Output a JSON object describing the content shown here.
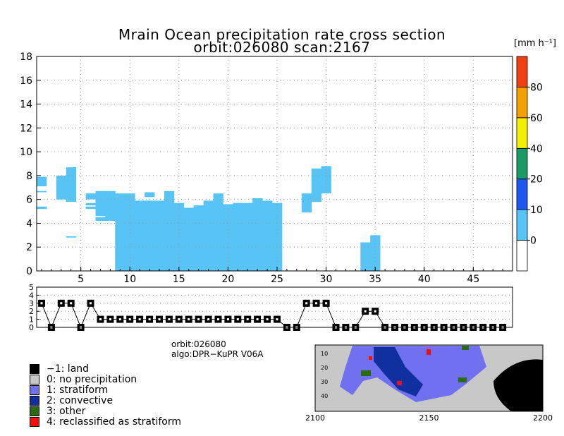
{
  "title": {
    "line1": "Mrain Ocean precipitation rate cross section",
    "line2": "orbit:026080    scan:2167"
  },
  "colorbar": {
    "unit": "[mm h⁻¹]",
    "ticks": [
      "0",
      "10",
      "20",
      "40",
      "60",
      "80"
    ],
    "colors": [
      "#ffffff",
      "#58c4f5",
      "#1e56f0",
      "#1a9a64",
      "#f5f000",
      "#f5a000",
      "#f04010"
    ]
  },
  "meta": {
    "orbit": "orbit:026080",
    "algo": "algo:DPR−KuPR V06A"
  },
  "legend": [
    {
      "code": "−1: land",
      "color": "#000000"
    },
    {
      "code": "0: no precipitation",
      "color": "#c8c8c8"
    },
    {
      "code": "1: stratiform",
      "color": "#7070f0"
    },
    {
      "code": "2: convective",
      "color": "#1030a0"
    },
    {
      "code": "3: other",
      "color": "#2a6a10"
    },
    {
      "code": "4: reclassified as stratiform",
      "color": "#f01010"
    }
  ],
  "chart_data": [
    {
      "type": "heatmap",
      "title": "Mrain Ocean precipitation rate cross section",
      "xlim": [
        0.5,
        49
      ],
      "ylim": [
        0,
        18
      ],
      "xticks": [
        5,
        10,
        15,
        20,
        25,
        30,
        35,
        40,
        45
      ],
      "yticks": [
        0,
        2,
        4,
        6,
        8,
        10,
        12,
        14,
        16,
        18
      ],
      "grid": true,
      "fill_color": "#58c4f5",
      "columns": [
        {
          "x": 1,
          "segments": [
            [
              7.1,
              7.9
            ],
            [
              6.6,
              6.7
            ],
            [
              5.2,
              5.4
            ]
          ]
        },
        {
          "x": 3,
          "segments": [
            [
              6.0,
              8.0
            ]
          ]
        },
        {
          "x": 4,
          "segments": [
            [
              5.8,
              8.7
            ],
            [
              2.8,
              2.9
            ]
          ]
        },
        {
          "x": 6,
          "segments": [
            [
              6.0,
              6.5
            ],
            [
              5.5,
              5.7
            ],
            [
              5.2,
              5.4
            ]
          ]
        },
        {
          "x": 7,
          "segments": [
            [
              4.6,
              6.7
            ],
            [
              4.2,
              4.5
            ]
          ]
        },
        {
          "x": 8,
          "segments": [
            [
              4.2,
              6.7
            ]
          ]
        },
        {
          "x": 9,
          "segments": [
            [
              0,
              6.5
            ]
          ]
        },
        {
          "x": 10,
          "segments": [
            [
              0,
              6.5
            ]
          ]
        },
        {
          "x": 11,
          "segments": [
            [
              0,
              5.9
            ]
          ]
        },
        {
          "x": 12,
          "segments": [
            [
              0,
              5.9
            ],
            [
              6.2,
              6.6
            ]
          ]
        },
        {
          "x": 13,
          "segments": [
            [
              0,
              5.9
            ]
          ]
        },
        {
          "x": 14,
          "segments": [
            [
              0,
              6.7
            ]
          ]
        },
        {
          "x": 15,
          "segments": [
            [
              0,
              5.7
            ]
          ]
        },
        {
          "x": 16,
          "segments": [
            [
              0,
              5.3
            ]
          ]
        },
        {
          "x": 17,
          "segments": [
            [
              0,
              5.5
            ]
          ]
        },
        {
          "x": 18,
          "segments": [
            [
              0,
              5.9
            ]
          ]
        },
        {
          "x": 19,
          "segments": [
            [
              0,
              6.5
            ]
          ]
        },
        {
          "x": 20,
          "segments": [
            [
              0,
              5.6
            ]
          ]
        },
        {
          "x": 21,
          "segments": [
            [
              0,
              5.7
            ]
          ]
        },
        {
          "x": 22,
          "segments": [
            [
              0,
              5.7
            ]
          ]
        },
        {
          "x": 23,
          "segments": [
            [
              0,
              6.1
            ]
          ]
        },
        {
          "x": 24,
          "segments": [
            [
              0,
              5.9
            ]
          ]
        },
        {
          "x": 25,
          "segments": [
            [
              0,
              5.7
            ]
          ]
        },
        {
          "x": 28,
          "segments": [
            [
              4.9,
              6.5
            ]
          ]
        },
        {
          "x": 29,
          "segments": [
            [
              5.8,
              8.6
            ]
          ]
        },
        {
          "x": 30,
          "segments": [
            [
              6.5,
              8.8
            ]
          ]
        },
        {
          "x": 34,
          "segments": [
            [
              0,
              2.4
            ]
          ]
        },
        {
          "x": 35,
          "segments": [
            [
              0,
              3.0
            ]
          ]
        }
      ]
    },
    {
      "type": "line",
      "xlim": [
        0.5,
        49
      ],
      "ylim": [
        0,
        5
      ],
      "yticks": [
        0,
        1,
        2,
        3,
        4,
        5
      ],
      "x": [
        1,
        2,
        3,
        4,
        5,
        6,
        7,
        8,
        9,
        10,
        11,
        12,
        13,
        14,
        15,
        16,
        17,
        18,
        19,
        20,
        21,
        22,
        23,
        24,
        25,
        26,
        27,
        28,
        29,
        30,
        31,
        32,
        33,
        34,
        35,
        36,
        37,
        38,
        39,
        40,
        41,
        42,
        43,
        44,
        45,
        46,
        47,
        48
      ],
      "values": [
        3,
        0,
        3,
        3,
        0,
        3,
        1,
        1,
        1,
        1,
        1,
        1,
        1,
        1,
        1,
        1,
        1,
        1,
        1,
        1,
        1,
        1,
        1,
        1,
        1,
        0,
        0,
        3,
        3,
        3,
        0,
        0,
        0,
        2,
        2,
        0,
        0,
        0,
        0,
        0,
        0,
        0,
        0,
        0,
        0,
        0,
        0,
        0
      ]
    },
    {
      "type": "heatmap",
      "xticks": [
        "2100",
        "2150",
        "2200"
      ],
      "yticks": [
        "10",
        "20",
        "30",
        "40"
      ]
    }
  ]
}
